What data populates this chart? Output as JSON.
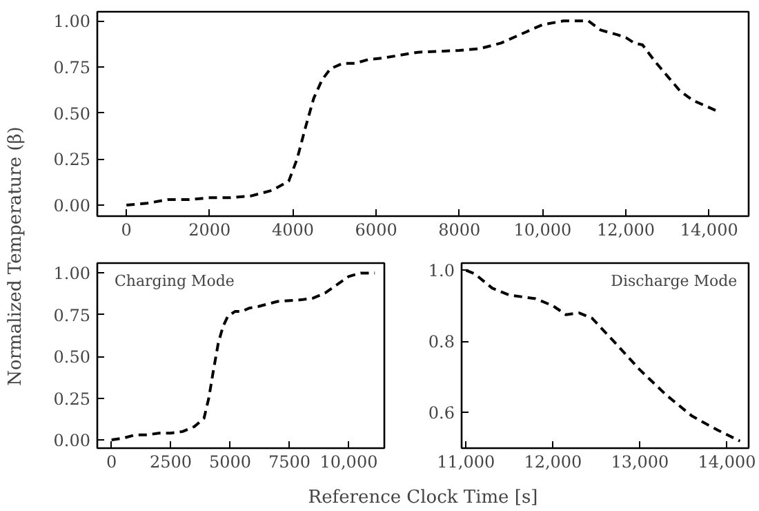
{
  "chart_data": [
    {
      "type": "line",
      "ylabel": "Normalized Temperature (β)",
      "xlim": [
        -700,
        14950
      ],
      "ylim": [
        -0.06,
        1.05
      ],
      "xticks": [
        0,
        2000,
        4000,
        6000,
        8000,
        {
          "value": 10000,
          "label": "10,000"
        },
        {
          "value": 12000,
          "label": "12,000"
        },
        {
          "value": 14000,
          "label": "14,000"
        }
      ],
      "yticks": [
        {
          "value": 0,
          "label": "0.00"
        },
        {
          "value": 0.25,
          "label": "0.25"
        },
        {
          "value": 0.5,
          "label": "0.50"
        },
        {
          "value": 0.75,
          "label": "0.75"
        },
        {
          "value": 1,
          "label": "1.00"
        }
      ],
      "grid": false,
      "line_style": "dashed",
      "marker": "none",
      "series": [
        {
          "color": "#000000",
          "x": [
            0,
            500,
            1000,
            1500,
            2000,
            2500,
            3000,
            3500,
            3900,
            4100,
            4300,
            4500,
            4700,
            4900,
            5200,
            5500,
            5800,
            6200,
            7000,
            8000,
            8500,
            9000,
            9500,
            10000,
            10500,
            11100,
            11400,
            11800,
            12000,
            12200,
            12400,
            12700,
            13000,
            13300,
            13600,
            14000,
            14250
          ],
          "values": [
            0,
            0.01,
            0.03,
            0.03,
            0.04,
            0.04,
            0.05,
            0.08,
            0.13,
            0.25,
            0.42,
            0.58,
            0.68,
            0.74,
            0.77,
            0.77,
            0.79,
            0.8,
            0.83,
            0.84,
            0.85,
            0.88,
            0.93,
            0.98,
            1.0,
            1.0,
            0.95,
            0.925,
            0.91,
            0.88,
            0.87,
            0.78,
            0.7,
            0.62,
            0.57,
            0.53,
            0.505
          ]
        }
      ]
    },
    {
      "type": "line",
      "xlabel": "Reference Clock Time [s]",
      "annotations": [
        "Charging Mode"
      ],
      "xlim": [
        -600,
        11500
      ],
      "ylim": [
        -0.05,
        1.06
      ],
      "xticks": [
        0,
        2500,
        5000,
        7500,
        {
          "value": 10000,
          "label": "10,000"
        }
      ],
      "yticks": [
        {
          "value": 0,
          "label": "0.00"
        },
        {
          "value": 0.25,
          "label": "0.25"
        },
        {
          "value": 0.5,
          "label": "0.50"
        },
        {
          "value": 0.75,
          "label": "0.75"
        },
        {
          "value": 1,
          "label": "1.00"
        }
      ],
      "grid": false,
      "line_style": "dashed",
      "marker": "none",
      "series": [
        {
          "color": "#000000",
          "x": [
            0,
            500,
            1000,
            1500,
            2000,
            2500,
            3000,
            3500,
            3900,
            4100,
            4300,
            4500,
            4700,
            4900,
            5200,
            5500,
            5800,
            6200,
            7000,
            8000,
            8500,
            9000,
            9500,
            10000,
            10500,
            11100
          ],
          "values": [
            0,
            0.01,
            0.03,
            0.03,
            0.04,
            0.04,
            0.05,
            0.08,
            0.13,
            0.25,
            0.42,
            0.58,
            0.68,
            0.74,
            0.77,
            0.77,
            0.79,
            0.8,
            0.83,
            0.84,
            0.85,
            0.88,
            0.93,
            0.98,
            1.0,
            1.0
          ]
        }
      ]
    },
    {
      "type": "line",
      "annotations": [
        "Discharge Mode"
      ],
      "xlim": [
        10950,
        14250
      ],
      "ylim": [
        0.5,
        1.02
      ],
      "xticks": [
        {
          "value": 11000,
          "label": "11,000"
        },
        {
          "value": 12000,
          "label": "12,000"
        },
        {
          "value": 13000,
          "label": "13,000"
        },
        {
          "value": 14000,
          "label": "14,000"
        }
      ],
      "yticks": [
        0.6,
        0.8,
        {
          "value": 1,
          "label": "1.0"
        }
      ],
      "grid": false,
      "line_style": "dashed",
      "marker": "none",
      "series": [
        {
          "color": "#000000",
          "x": [
            11000,
            11100,
            11300,
            11500,
            11800,
            12000,
            12150,
            12300,
            12450,
            12700,
            13000,
            13300,
            13600,
            13900,
            14150
          ],
          "values": [
            1.0,
            0.99,
            0.95,
            0.93,
            0.92,
            0.9,
            0.875,
            0.88,
            0.865,
            0.8,
            0.72,
            0.65,
            0.59,
            0.55,
            0.52
          ]
        }
      ]
    }
  ]
}
